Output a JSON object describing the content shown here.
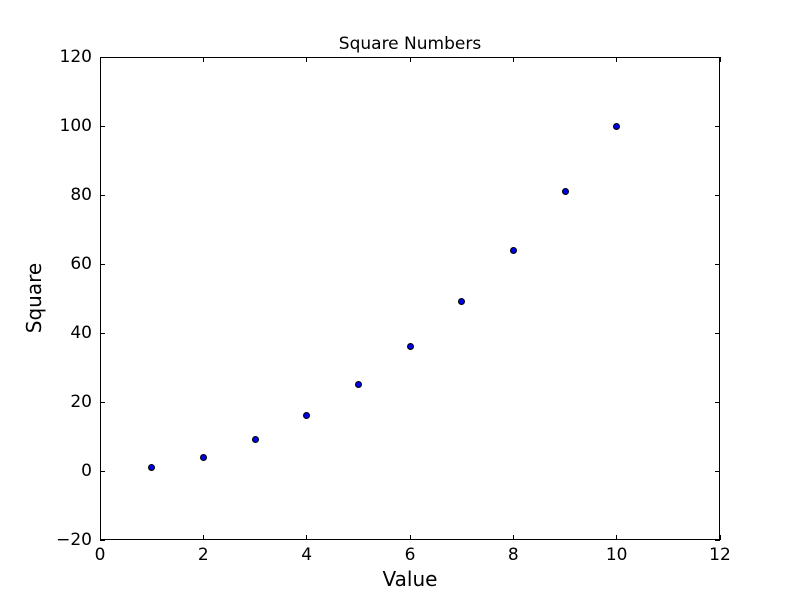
{
  "chart_data": {
    "type": "scatter",
    "title": "Square Numbers",
    "xlabel": "Value",
    "ylabel": "Square",
    "x": [
      1,
      2,
      3,
      4,
      5,
      6,
      7,
      8,
      9,
      10
    ],
    "y": [
      1,
      4,
      9,
      16,
      25,
      36,
      49,
      64,
      81,
      100
    ],
    "xlim": [
      0,
      12
    ],
    "ylim": [
      -20,
      120
    ],
    "xticks": [
      0,
      2,
      4,
      6,
      8,
      10,
      12
    ],
    "yticks": [
      -20,
      0,
      20,
      40,
      60,
      80,
      100,
      120
    ],
    "grid": false,
    "legend": "none",
    "tick_direction": "in",
    "marker_fill_color": "#0000e6",
    "marker_edge_color": "#000000",
    "frame_color": "#000000",
    "background_color": "#ffffff"
  }
}
